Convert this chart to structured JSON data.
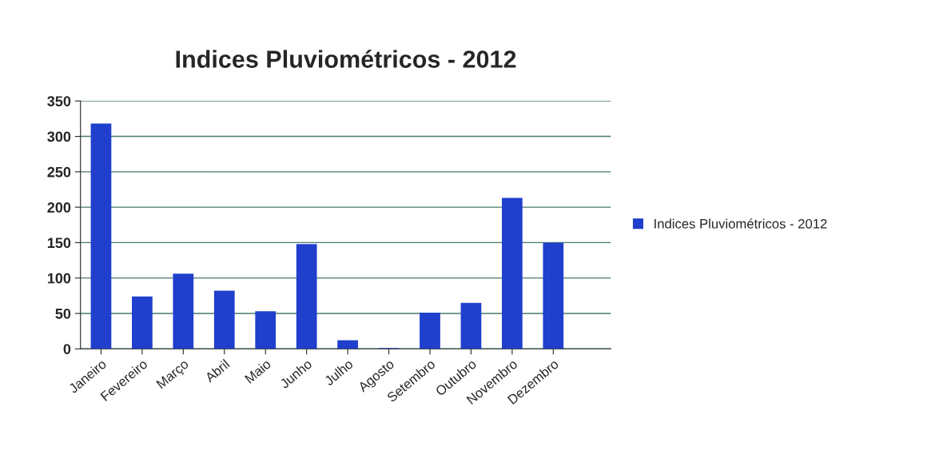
{
  "chart_data": {
    "type": "bar",
    "title": "Indices Pluviométricos - 2012",
    "categories": [
      "Janeiro",
      "Fevereiro",
      "Março",
      "Abril",
      "Maio",
      "Junho",
      "Julho",
      "Agosto",
      "Setembro",
      "Outubro",
      "Novembro",
      "Dezembro"
    ],
    "series": [
      {
        "name": "Indices Pluviométricos - 2012",
        "color": "#1f3fcc",
        "values": [
          318,
          74,
          106,
          82,
          53,
          148,
          12,
          1,
          51,
          65,
          213,
          150
        ]
      }
    ],
    "ylim": [
      0,
      350
    ],
    "yticks": [
      0,
      50,
      100,
      150,
      200,
      250,
      300,
      350
    ],
    "grid": "y",
    "legend": "right"
  }
}
